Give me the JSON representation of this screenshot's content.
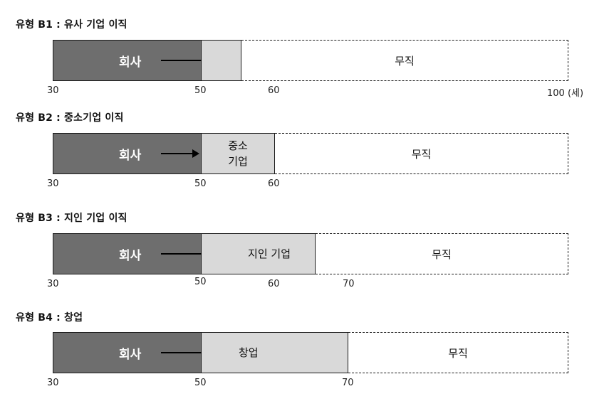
{
  "rows": [
    {
      "title": "유형 B1 : 유사 기업 이직",
      "company": "회사",
      "middle": "",
      "jobless": "무직",
      "ticks": [
        "30",
        "50",
        "60",
        "100 (세)"
      ]
    },
    {
      "title": "유형 B2 : 중소기업 이직",
      "company": "회사",
      "middle_line1": "중소",
      "middle_line2": "기업",
      "jobless": "무직",
      "ticks": [
        "30",
        "50",
        "60"
      ]
    },
    {
      "title": "유형 B3 : 지인 기업 이직",
      "company": "회사",
      "middle": "지인 기업",
      "jobless": "무직",
      "ticks": [
        "30",
        "50",
        "60",
        "70"
      ]
    },
    {
      "title": "유형 B4 : 창업",
      "company": "회사",
      "middle": "창업",
      "jobless": "무직",
      "ticks": [
        "30",
        "50",
        "70"
      ]
    }
  ]
}
